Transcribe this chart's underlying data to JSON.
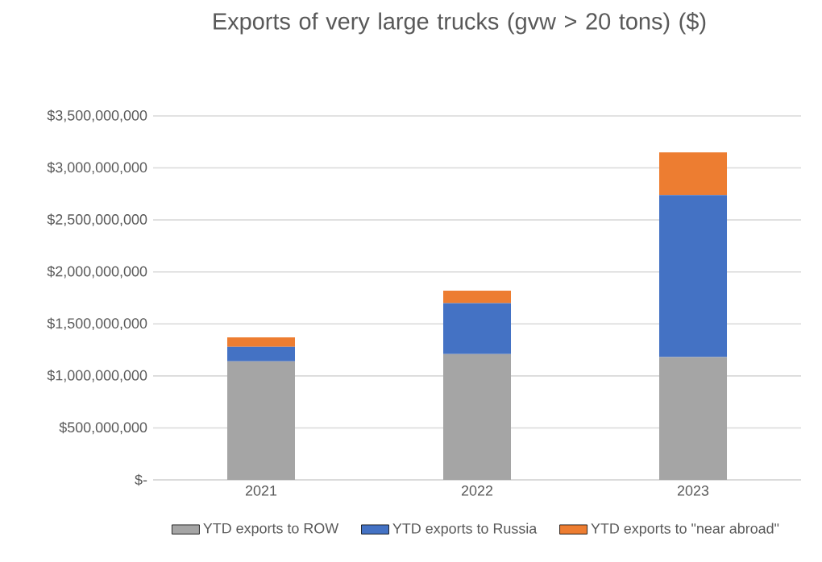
{
  "chart_data": {
    "type": "bar",
    "title": "Exports of very large trucks (gvw > 20 tons) ($)",
    "categories": [
      "2021",
      "2022",
      "2023"
    ],
    "stacked": true,
    "series": [
      {
        "name": "YTD exports to ROW",
        "color": "#a5a5a5",
        "values": [
          1140000000,
          1210000000,
          1180000000
        ]
      },
      {
        "name": "YTD exports to Russia",
        "color": "#4472c4",
        "values": [
          140000000,
          490000000,
          1560000000
        ]
      },
      {
        "name": "YTD exports to \"near abroad\"",
        "color": "#ed7d31",
        "values": [
          90000000,
          120000000,
          410000000
        ]
      }
    ],
    "ylim": [
      0,
      3500000000
    ],
    "yticks": [
      {
        "value": 0,
        "label": "$-"
      },
      {
        "value": 500000000,
        "label": "$500,000,000"
      },
      {
        "value": 1000000000,
        "label": "$1,000,000,000"
      },
      {
        "value": 1500000000,
        "label": "$1,500,000,000"
      },
      {
        "value": 2000000000,
        "label": "$2,000,000,000"
      },
      {
        "value": 2500000000,
        "label": "$2,500,000,000"
      },
      {
        "value": 3000000000,
        "label": "$3,000,000,000"
      },
      {
        "value": 3500000000,
        "label": "$3,500,000,000"
      }
    ],
    "grid": "y",
    "legend": "bottom"
  }
}
